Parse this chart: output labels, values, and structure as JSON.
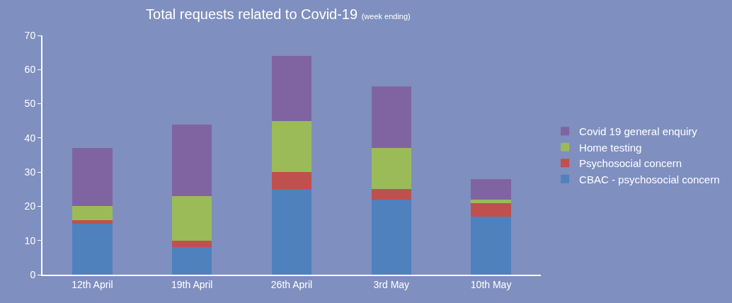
{
  "chart_data": {
    "type": "bar",
    "title": "Total requests related to Covid-19",
    "subtitle": "(week ending)",
    "categories": [
      "12th April",
      "19th April",
      "26th April",
      "3rd May",
      "10th May"
    ],
    "stacked": true,
    "series": [
      {
        "name": "CBAC - psychosocial concern",
        "color": "#4f81bd",
        "values": [
          15,
          8,
          25,
          22,
          17
        ]
      },
      {
        "name": "Psychosocial concern",
        "color": "#c0504d",
        "values": [
          1,
          2,
          5,
          3,
          4
        ]
      },
      {
        "name": "Home testing",
        "color": "#9bbb59",
        "values": [
          4,
          13,
          15,
          12,
          1
        ]
      },
      {
        "name": "Covid 19 general enquiry",
        "color": "#8064a2",
        "values": [
          17,
          21,
          19,
          18,
          6
        ]
      }
    ],
    "ylim": [
      0,
      70
    ],
    "yticks": [
      0,
      10,
      20,
      30,
      40,
      50,
      60,
      70
    ],
    "grid": false,
    "legend": "right"
  }
}
